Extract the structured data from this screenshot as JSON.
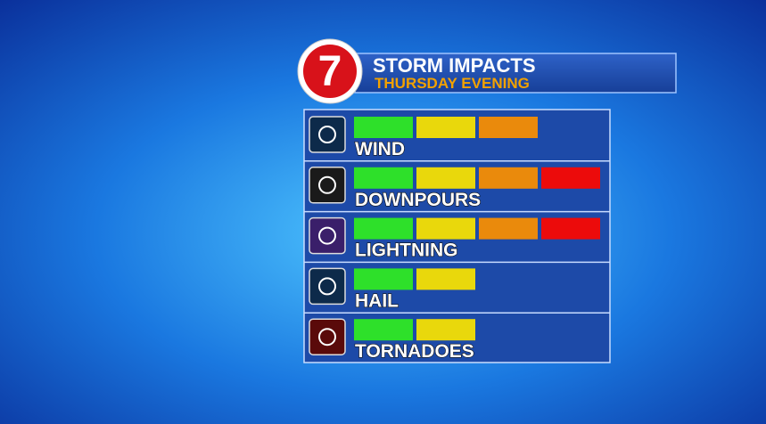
{
  "header": {
    "logo": "7",
    "title": "STORM IMPACTS",
    "subtitle": "THURSDAY EVENING"
  },
  "level_colors": [
    "#2ee02a",
    "#e9d80c",
    "#ea8a0c",
    "#ec0b0b"
  ],
  "rows": [
    {
      "label": "WIND",
      "level": 3
    },
    {
      "label": "DOWNPOURS",
      "level": 4
    },
    {
      "label": "LIGHTNING",
      "level": 4
    },
    {
      "label": "HAIL",
      "level": 2
    },
    {
      "label": "TORNADOES",
      "level": 2
    }
  ]
}
